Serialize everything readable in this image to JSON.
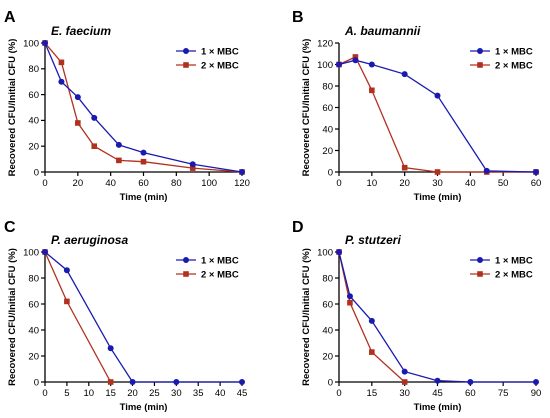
{
  "colors": {
    "series_1": "#1a1ab0",
    "series_2": "#b23020",
    "axis": "#000000"
  },
  "chart_data": [
    {
      "panel": "A",
      "type": "line",
      "title": "E. faecium",
      "xlabel": "Time (min)",
      "ylabel": "Recovered CFU/Initial CFU (%)",
      "xlim": [
        0,
        120
      ],
      "ylim": [
        0,
        100
      ],
      "xticks": [
        0,
        20,
        40,
        60,
        80,
        100,
        120
      ],
      "yticks": [
        0,
        20,
        40,
        60,
        80,
        100
      ],
      "legend": "top-right",
      "series": [
        {
          "name": "1 × MBC",
          "x": [
            0,
            10,
            20,
            30,
            45,
            60,
            90,
            120
          ],
          "values": [
            100,
            70,
            58,
            42,
            21,
            15,
            6,
            0
          ]
        },
        {
          "name": "2 × MBC",
          "x": [
            0,
            10,
            20,
            30,
            45,
            60,
            90,
            120
          ],
          "values": [
            100,
            85,
            38,
            20,
            9,
            8,
            3,
            0
          ]
        }
      ]
    },
    {
      "panel": "B",
      "type": "line",
      "title": "A. baumannii",
      "xlabel": "Time (min)",
      "ylabel": "Recovered CFU/Initial CFU (%)",
      "xlim": [
        0,
        60
      ],
      "ylim": [
        0,
        120
      ],
      "xticks": [
        0,
        10,
        20,
        30,
        40,
        50,
        60
      ],
      "yticks": [
        0,
        20,
        40,
        60,
        80,
        100,
        120
      ],
      "legend": "top-right",
      "series": [
        {
          "name": "1 × MBC",
          "x": [
            0,
            5,
            10,
            20,
            30,
            45,
            60
          ],
          "values": [
            100,
            104,
            100,
            91,
            71,
            1,
            0
          ]
        },
        {
          "name": "2 × MBC",
          "x": [
            0,
            5,
            10,
            20,
            30,
            45,
            60
          ],
          "values": [
            100,
            107,
            76,
            4,
            0,
            0,
            0
          ]
        }
      ]
    },
    {
      "panel": "C",
      "type": "line",
      "title": "P. aeruginosa",
      "xlabel": "Time (min)",
      "ylabel": "Recovered CFU/Initial CFU (%)",
      "xlim": [
        0,
        45
      ],
      "ylim": [
        0,
        100
      ],
      "xticks": [
        0,
        5,
        10,
        15,
        20,
        25,
        30,
        35,
        40,
        45
      ],
      "yticks": [
        0,
        20,
        40,
        60,
        80,
        100
      ],
      "legend": "top-right",
      "series": [
        {
          "name": "1 × MBC",
          "x": [
            0,
            5,
            15,
            20,
            30,
            45
          ],
          "values": [
            100,
            86,
            26,
            0,
            0,
            0
          ]
        },
        {
          "name": "2 × MBC",
          "x": [
            0,
            5,
            15
          ],
          "values": [
            100,
            62,
            0
          ]
        }
      ]
    },
    {
      "panel": "D",
      "type": "line",
      "title": "P. stutzeri",
      "xlabel": "Time (min)",
      "ylabel": "Recovered CFU/Initial CFU (%)",
      "xlim": [
        0,
        90
      ],
      "ylim": [
        0,
        100
      ],
      "xticks": [
        0,
        15,
        30,
        45,
        60,
        75,
        90
      ],
      "yticks": [
        0,
        20,
        40,
        60,
        80,
        100
      ],
      "legend": "top-right",
      "series": [
        {
          "name": "1 × MBC",
          "x": [
            0,
            5,
            15,
            30,
            45,
            60,
            90
          ],
          "values": [
            100,
            66,
            47,
            8,
            1,
            0,
            0
          ]
        },
        {
          "name": "2 × MBC",
          "x": [
            0,
            5,
            15,
            30
          ],
          "values": [
            100,
            61,
            23,
            0
          ]
        }
      ]
    }
  ]
}
